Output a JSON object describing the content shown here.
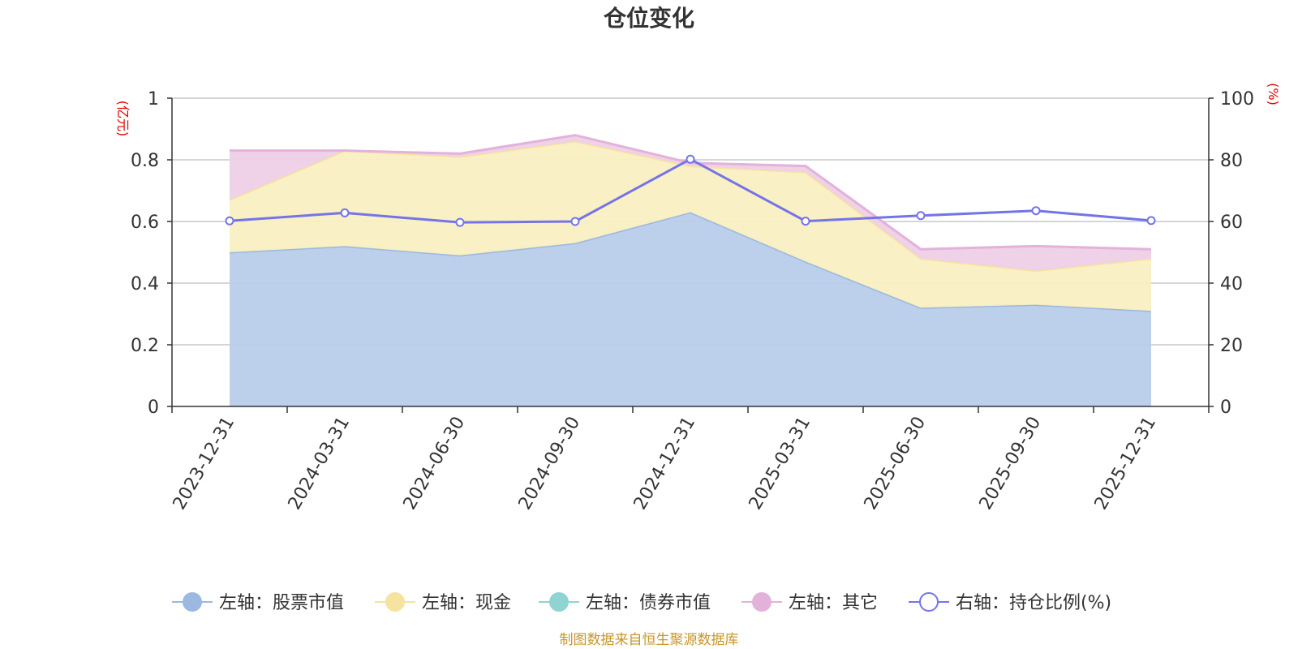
{
  "chart_data": {
    "type": "area",
    "title": "仓位变化",
    "categories": [
      "2023-12-31",
      "2024-03-31",
      "2024-06-30",
      "2024-09-30",
      "2024-12-31",
      "2025-03-31",
      "2025-06-30",
      "2025-09-30",
      "2025-12-31"
    ],
    "series": [
      {
        "name": "左轴：股票市值",
        "axis": "left",
        "stack": true,
        "color": "#9bb8e0",
        "fill": "#b8cdea",
        "values": [
          0.5,
          0.52,
          0.49,
          0.53,
          0.63,
          0.47,
          0.32,
          0.33,
          0.31
        ]
      },
      {
        "name": "左轴：现金",
        "axis": "left",
        "stack": true,
        "color": "#f7e3a0",
        "fill": "#faefc2",
        "values": [
          0.17,
          0.31,
          0.32,
          0.33,
          0.15,
          0.29,
          0.16,
          0.11,
          0.17
        ]
      },
      {
        "name": "左轴：债券市值",
        "axis": "left",
        "stack": true,
        "color": "#8fd3d3",
        "fill": "#b3e3e3",
        "values": [
          0,
          0,
          0,
          0,
          0,
          0,
          0,
          0,
          0
        ]
      },
      {
        "name": "左轴：其它",
        "axis": "left",
        "stack": true,
        "color": "#e3b2da",
        "fill": "#eed0e6",
        "values": [
          0.16,
          0.0,
          0.01,
          0.02,
          0.01,
          0.02,
          0.03,
          0.08,
          0.03
        ]
      },
      {
        "name": "右轴：持仓比例(%)",
        "axis": "right",
        "stack": false,
        "type": "line",
        "color": "#7474e8",
        "values": [
          60.2,
          62.8,
          59.7,
          60.0,
          80.2,
          60.1,
          61.9,
          63.5,
          60.3
        ]
      }
    ],
    "left_axis": {
      "unit": "(亿元)",
      "ylim": [
        0,
        1
      ],
      "ticks": [
        "0",
        "0.2",
        "0.4",
        "0.6",
        "0.8",
        "1"
      ]
    },
    "right_axis": {
      "unit": "(%)",
      "ylim": [
        0,
        100
      ],
      "ticks": [
        "0",
        "20",
        "40",
        "60",
        "80",
        "100"
      ]
    },
    "legend_position": "bottom-center",
    "grid": true
  },
  "source_text": "制图数据来自恒生聚源数据库"
}
